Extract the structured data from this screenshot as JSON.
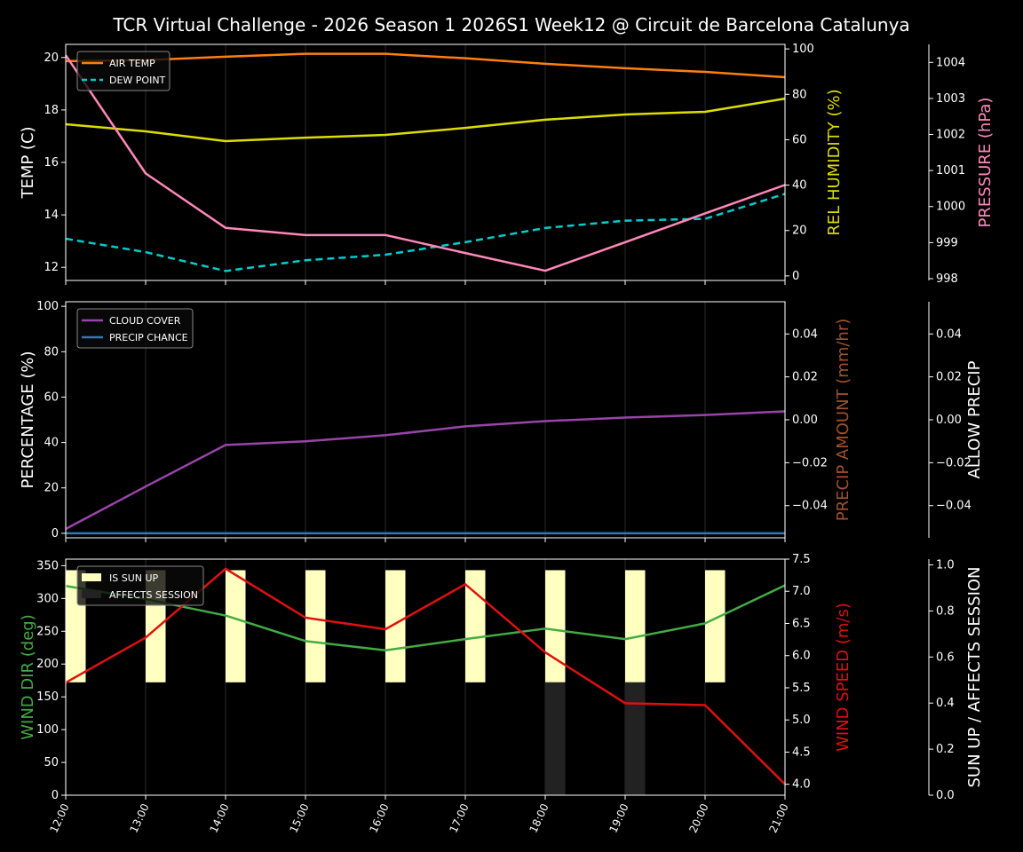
{
  "title": "TCR Virtual Challenge - 2026 Season 1 2026S1 Week12 @ Circuit de Barcelona Catalunya",
  "chart_data": [
    {
      "type": "line",
      "panel": "weather",
      "x": [
        "12:00",
        "13:00",
        "14:00",
        "15:00",
        "16:00",
        "17:00",
        "18:00",
        "19:00",
        "20:00",
        "21:00"
      ],
      "axes": {
        "left": {
          "label": "TEMP (C)",
          "ylim": [
            11.5,
            20.5
          ],
          "ticks": [
            12,
            14,
            16,
            18,
            20
          ],
          "color": "#ffffff"
        },
        "right1": {
          "label": "REL HUMIDITY (%)",
          "ylim": [
            -2,
            102
          ],
          "ticks": [
            0,
            20,
            40,
            60,
            80,
            100
          ],
          "color": "#dddd00"
        },
        "right2": {
          "label": "PRESSURE (hPa)",
          "ylim": [
            997.95,
            1004.5
          ],
          "ticks": [
            998,
            999,
            1000,
            1001,
            1002,
            1003,
            1004
          ],
          "color": "#ff88bb"
        }
      },
      "series": [
        {
          "name": "AIR TEMP",
          "axis": "left",
          "color": "#ff7f0e",
          "dash": false,
          "legend": true,
          "values": [
            19.86,
            19.9,
            20.03,
            20.14,
            20.14,
            19.97,
            19.76,
            19.59,
            19.45,
            19.25
          ]
        },
        {
          "name": "DEW POINT",
          "axis": "left",
          "color": "#00cccc",
          "dash": true,
          "legend": true,
          "values": [
            13.09,
            12.58,
            11.86,
            12.27,
            12.48,
            12.96,
            13.5,
            13.78,
            13.85,
            14.8
          ]
        },
        {
          "name": "REL HUMIDITY",
          "axis": "right1",
          "color": "#dddd00",
          "dash": false,
          "legend": false,
          "values": [
            66.8,
            63.7,
            59.4,
            60.9,
            62.1,
            65.2,
            68.8,
            71.1,
            72.3,
            78.1
          ]
        },
        {
          "name": "PRESSURE",
          "axis": "right2",
          "color": "#ff88bb",
          "dash": false,
          "legend": false,
          "values": [
            1004.2,
            1000.92,
            999.41,
            999.21,
            999.21,
            998.71,
            998.22,
            999.01,
            999.81,
            1000.6
          ]
        }
      ],
      "legend": "top-left"
    },
    {
      "type": "line",
      "panel": "precip",
      "x": [
        "12:00",
        "13:00",
        "14:00",
        "15:00",
        "16:00",
        "17:00",
        "18:00",
        "19:00",
        "20:00",
        "21:00"
      ],
      "axes": {
        "left": {
          "label": "PERCENTAGE (%)",
          "ylim": [
            -2,
            102
          ],
          "ticks": [
            0,
            20,
            40,
            60,
            80,
            100
          ],
          "color": "#ffffff"
        },
        "right1": {
          "label": "PRECIP AMOUNT (mm/hr)",
          "ylim": [
            -0.055,
            0.055
          ],
          "ticks": [
            -0.04,
            -0.02,
            0.0,
            0.02,
            0.04
          ],
          "tick_labels": [
            "−0.04",
            "−0.02",
            "0.00",
            "0.02",
            "0.04"
          ],
          "color": "#a0522d"
        },
        "right2": {
          "label": "ALLOW PRECIP",
          "ylim": [
            -0.055,
            0.055
          ],
          "ticks": [
            -0.04,
            -0.02,
            0.0,
            0.02,
            0.04
          ],
          "tick_labels": [
            "−0.04",
            "−0.02",
            "0.00",
            "0.02",
            "0.04"
          ],
          "color": "#ffffff"
        }
      },
      "series": [
        {
          "name": "CLOUD COVER",
          "axis": "left",
          "color": "#9944aa",
          "dash": false,
          "legend": true,
          "values": [
            1.9,
            20.6,
            38.9,
            40.5,
            43.2,
            47.1,
            49.4,
            51.0,
            52.1,
            53.7
          ]
        },
        {
          "name": "PRECIP CHANCE",
          "axis": "left",
          "color": "#3377bb",
          "dash": false,
          "legend": true,
          "values": [
            0,
            0,
            0,
            0,
            0,
            0,
            0,
            0,
            0,
            0
          ]
        }
      ],
      "legend": "top-left"
    },
    {
      "type": "line",
      "panel": "wind",
      "x": [
        "12:00",
        "13:00",
        "14:00",
        "15:00",
        "16:00",
        "17:00",
        "18:00",
        "19:00",
        "20:00",
        "21:00"
      ],
      "axes": {
        "left": {
          "label": "WIND DIR (deg)",
          "ylim": [
            0,
            360
          ],
          "ticks": [
            0,
            50,
            100,
            150,
            200,
            250,
            300,
            350
          ],
          "color": "#44aa44"
        },
        "right1": {
          "label": "WIND SPEED (m/s)",
          "ylim": [
            3.83,
            7.5
          ],
          "ticks": [
            4.0,
            4.5,
            5.0,
            5.5,
            6.0,
            6.5,
            7.0,
            7.5
          ],
          "color": "#dd1111"
        },
        "right2": {
          "label": "SUN UP / AFFECTS SESSION",
          "ylim": [
            0,
            1.025
          ],
          "ticks": [
            0.0,
            0.2,
            0.4,
            0.6,
            0.8,
            1.0
          ],
          "color": "#ffffff"
        }
      },
      "bars": [
        {
          "name": "IS SUN UP",
          "color": "#ffffc0",
          "values": [
            1,
            1,
            1,
            1,
            1,
            1,
            1,
            1,
            1,
            0
          ]
        },
        {
          "name": "AFFECTS SESSION",
          "color": "#222222",
          "values": [
            0,
            0,
            0,
            0,
            0,
            0,
            1,
            1,
            0,
            0
          ]
        }
      ],
      "series": [
        {
          "name": "WIND DIR",
          "axis": "left",
          "color": "#44aa44",
          "dash": false,
          "legend": false,
          "values": [
            319,
            299,
            274,
            235,
            221,
            238,
            254,
            238,
            262,
            320
          ]
        },
        {
          "name": "WIND SPEED",
          "axis": "right1",
          "color": "#dd1111",
          "dash": false,
          "legend": false,
          "values": [
            5.58,
            6.28,
            7.35,
            6.59,
            6.41,
            7.11,
            6.05,
            5.26,
            5.23,
            4.0
          ]
        }
      ],
      "legend": "top-left"
    }
  ]
}
